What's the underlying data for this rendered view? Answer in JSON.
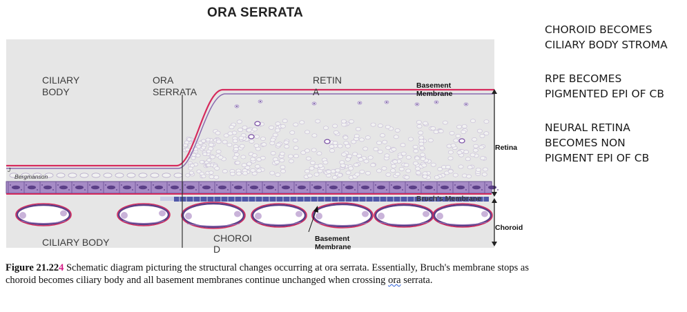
{
  "title": "ORA SERRATA",
  "notes": [
    "CHOROID BECOMES\nCILIARY BODY STROMA",
    "RPE BECOMES\nPIGMENTED EPI OF CB",
    "NEURAL RETINA\nBECOMES NON\nPIGMENT EPI OF CB"
  ],
  "diagram": {
    "labels": {
      "ciliary_body_top": [
        "CILIARY",
        "BODY"
      ],
      "ora_serrata": [
        "ORA",
        "SERRATA"
      ],
      "retina_top": [
        "RETIN",
        "A"
      ],
      "basement_membrane_top": [
        "Basement",
        "Membrane"
      ],
      "retina_side": "Retina",
      "bruchs_membrane": "Bruch's Membrane",
      "choroid_side": "Choroid",
      "ciliary_body_bottom": "CILIARY BODY",
      "choroid_bottom": [
        "CHOROI",
        "D"
      ],
      "basement_membrane_bottom": [
        "Basement",
        "Membrane"
      ],
      "author": [
        "J",
        "Bergmanson"
      ]
    },
    "colors": {
      "background": "#e6e6e6",
      "membrane": "#d62a5c",
      "cell_outline": "#9a86bd",
      "rpe": "#8a6aae",
      "bruch": "#4f57a8",
      "vessel_fill": "#ffffff",
      "vessel_inner": "#c9b3d9"
    }
  },
  "caption": {
    "label": "Figure",
    "number": "21.22",
    "suffix": "4",
    "text_before": "Schematic diagram picturing the structural changes occurring at ora serrata. Essentially, Bruch's membrane stops as choroid becomes ciliary body and all basement membranes continue unchanged when crossing ",
    "text_marked": "ora",
    "text_after": " serrata."
  }
}
